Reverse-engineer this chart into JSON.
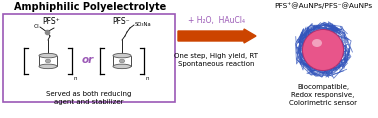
{
  "title_left": "Amphiphilic Polyelectrolyte",
  "title_right": "PFS⁺@AuNPs/PFS⁻@AuNPs",
  "pfs_plus": "PFS⁺",
  "pfs_minus": "PFS⁻",
  "or_text": "or",
  "bottom_left_text": "Served as both reducing\nagent and stabilizer",
  "arrow_text_top": "+ H₂O,  HAuCl₄",
  "arrow_text_bottom": "One step, High yield, RT\nSpontaneous reaction",
  "bottom_right_text": "Biocompatible,\nRedox responsive,\nColorimetric sensor",
  "box_color": "#9b59b6",
  "arrow_color": "#cc4400",
  "or_color": "#9b59b6",
  "arrow_top_color": "#9b59b6",
  "title_fontsize": 7.0,
  "label_fontsize": 5.5,
  "small_fontsize": 5.0,
  "bg_color": "#ffffff",
  "sphere_pink": "#e8558a",
  "sphere_highlight": "#f5a0c8",
  "sphere_dark": "#b03070",
  "halo_blue": "#3355bb",
  "fig_width": 3.78,
  "fig_height": 1.18,
  "dpi": 100
}
